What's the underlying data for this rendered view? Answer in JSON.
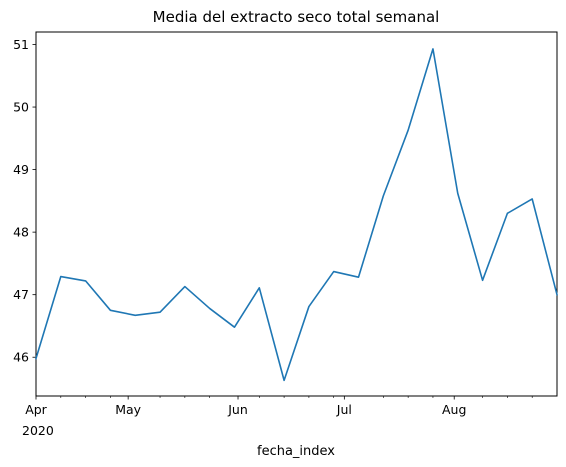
{
  "chart_data": {
    "type": "line",
    "title": "Media del extracto seco total semanal",
    "xlabel": "fecha_index",
    "ylabel": "",
    "x": [
      "2020-04-05",
      "2020-04-12",
      "2020-04-19",
      "2020-04-26",
      "2020-05-03",
      "2020-05-10",
      "2020-05-17",
      "2020-05-24",
      "2020-05-31",
      "2020-06-07",
      "2020-06-14",
      "2020-06-21",
      "2020-06-28",
      "2020-07-05",
      "2020-07-12",
      "2020-07-19",
      "2020-07-26",
      "2020-08-02",
      "2020-08-09",
      "2020-08-16",
      "2020-08-23",
      "2020-08-30"
    ],
    "series": [
      {
        "name": "",
        "values": [
          45.98,
          47.29,
          47.22,
          46.75,
          46.67,
          46.72,
          47.13,
          46.78,
          46.48,
          47.11,
          45.63,
          46.81,
          47.37,
          47.28,
          48.58,
          49.63,
          50.93,
          48.62,
          47.23,
          48.3,
          48.53,
          47.0
        ],
        "color": "#1f77b4"
      }
    ],
    "xlim": [
      "2020-04-05",
      "2020-08-30"
    ],
    "ylim": [
      45.38,
      51.2
    ],
    "yticks": [
      46,
      47,
      48,
      49,
      50,
      51
    ],
    "xticks": [
      {
        "date": "2020-04-01",
        "label": "Apr",
        "sublabel": "2020"
      },
      {
        "date": "2020-05-01",
        "label": "May",
        "sublabel": ""
      },
      {
        "date": "2020-06-01",
        "label": "Jun",
        "sublabel": ""
      },
      {
        "date": "2020-07-01",
        "label": "Jul",
        "sublabel": ""
      },
      {
        "date": "2020-08-01",
        "label": "Aug",
        "sublabel": ""
      }
    ],
    "minor_xticks": [
      "2020-04-12",
      "2020-04-19",
      "2020-04-26",
      "2020-05-10",
      "2020-05-17",
      "2020-05-24",
      "2020-06-07",
      "2020-06-14",
      "2020-06-21",
      "2020-06-28",
      "2020-07-12",
      "2020-07-19",
      "2020-07-26",
      "2020-08-09",
      "2020-08-16",
      "2020-08-23"
    ],
    "grid": false,
    "legend": "none"
  }
}
